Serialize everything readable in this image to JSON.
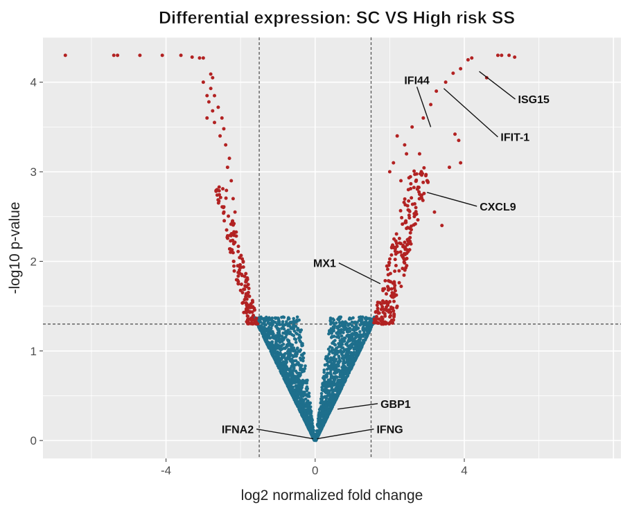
{
  "chart_data": {
    "type": "scatter",
    "title": "Differential expression: SC VS High risk SS",
    "xlabel": "log2 normalized fold change",
    "ylabel": "-log10 p-value",
    "xlim": [
      -7.3,
      8.2
    ],
    "ylim": [
      -0.2,
      4.5
    ],
    "x_ticks": [
      -4,
      0,
      4
    ],
    "y_ticks": [
      0,
      1,
      2,
      3,
      4
    ],
    "grid": true,
    "thresholds": {
      "log2fc": [
        -1.5,
        1.5
      ],
      "neg_log10_p": 1.3
    },
    "colors": {
      "significant": "#b22222",
      "not_significant": "#1e6f8c",
      "panel": "#ebebeb",
      "grid": "#ffffff"
    },
    "labeled_genes": [
      {
        "name": "ISG15",
        "x": 4.4,
        "y": 4.12
      },
      {
        "name": "IFI44",
        "x": 3.1,
        "y": 3.5
      },
      {
        "name": "IFIT-1",
        "x": 3.45,
        "y": 3.93
      },
      {
        "name": "CXCL9",
        "x": 3.0,
        "y": 2.77
      },
      {
        "name": "MX1",
        "x": 1.75,
        "y": 1.75
      },
      {
        "name": "GBP1",
        "x": 0.6,
        "y": 0.35
      },
      {
        "name": "IFNA2",
        "x": -0.05,
        "y": 0.02
      },
      {
        "name": "IFNG",
        "x": 0.05,
        "y": 0.02
      }
    ],
    "significant_points": [
      [
        -6.7,
        4.3
      ],
      [
        -5.4,
        4.3
      ],
      [
        -5.3,
        4.3
      ],
      [
        -4.7,
        4.3
      ],
      [
        -4.1,
        4.3
      ],
      [
        -3.6,
        4.3
      ],
      [
        -3.3,
        4.28
      ],
      [
        -3.1,
        4.27
      ],
      [
        -3.0,
        4.27
      ],
      [
        -2.8,
        4.09
      ],
      [
        -2.75,
        4.05
      ],
      [
        -2.8,
        3.93
      ],
      [
        -2.9,
        3.85
      ],
      [
        -2.7,
        3.85
      ],
      [
        -2.85,
        3.78
      ],
      [
        -2.6,
        3.72
      ],
      [
        -2.75,
        3.68
      ],
      [
        -2.5,
        3.6
      ],
      [
        -2.7,
        3.55
      ],
      [
        -2.45,
        3.48
      ],
      [
        -2.55,
        3.4
      ],
      [
        -2.4,
        3.3
      ],
      [
        -2.3,
        3.15
      ],
      [
        -2.35,
        3.05
      ],
      [
        -2.25,
        2.9
      ],
      [
        -2.2,
        2.7
      ],
      [
        -2.15,
        2.55
      ],
      [
        -3.0,
        4.0
      ],
      [
        -2.9,
        3.6
      ]
    ]
  }
}
